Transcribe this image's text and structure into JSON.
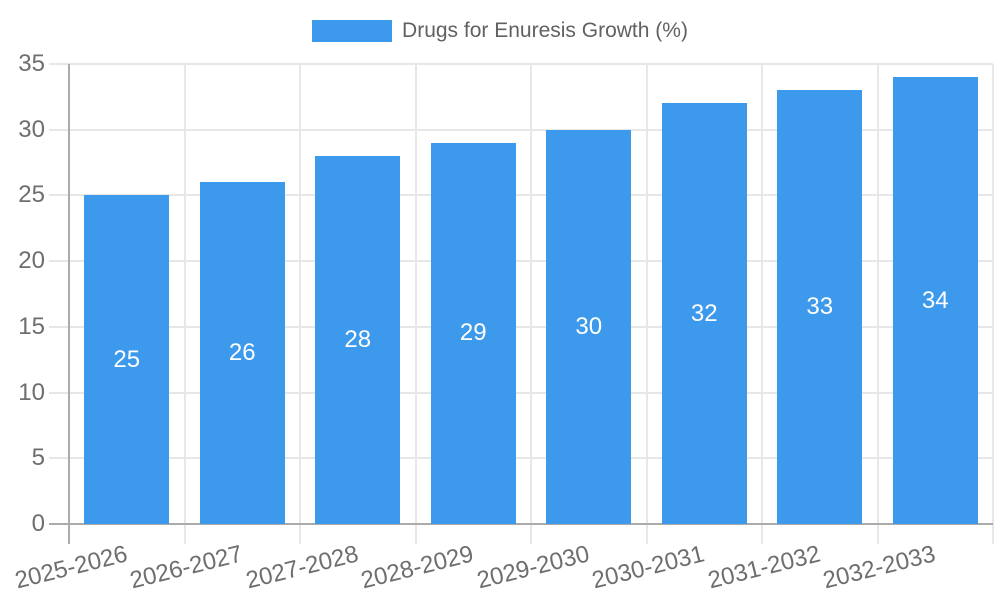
{
  "legend": {
    "label": "Drugs for Enuresis Growth (%)"
  },
  "chart_data": {
    "type": "bar",
    "title": "Drugs for Enuresis Growth (%)",
    "series_name": "Drugs for Enuresis Growth (%)",
    "categories": [
      "2025-2026",
      "2026-2027",
      "2027-2028",
      "2028-2029",
      "2029-2030",
      "2030-2031",
      "2031-2032",
      "2032-2033"
    ],
    "values": [
      25,
      26,
      28,
      29,
      30,
      32,
      33,
      34
    ],
    "value_labels": [
      "25",
      "26",
      "28",
      "29",
      "30",
      "32",
      "33",
      "34"
    ],
    "xlabel": "",
    "ylabel": "",
    "ylim": [
      0,
      35
    ],
    "yticks": [
      0,
      5,
      10,
      15,
      20,
      25,
      30,
      35
    ],
    "grid": true,
    "legend_position": "top",
    "bar_color": "#3C99EC",
    "value_label_position": "inside-center",
    "value_label_color": "#ffffff"
  },
  "colors": {
    "bar": "#3C99EC",
    "grid": "#E7E7E7",
    "axis": "#ABABAB",
    "tick_text": "#6E6E6E",
    "legend_text": "#616161",
    "background": "#FFFFFF"
  }
}
